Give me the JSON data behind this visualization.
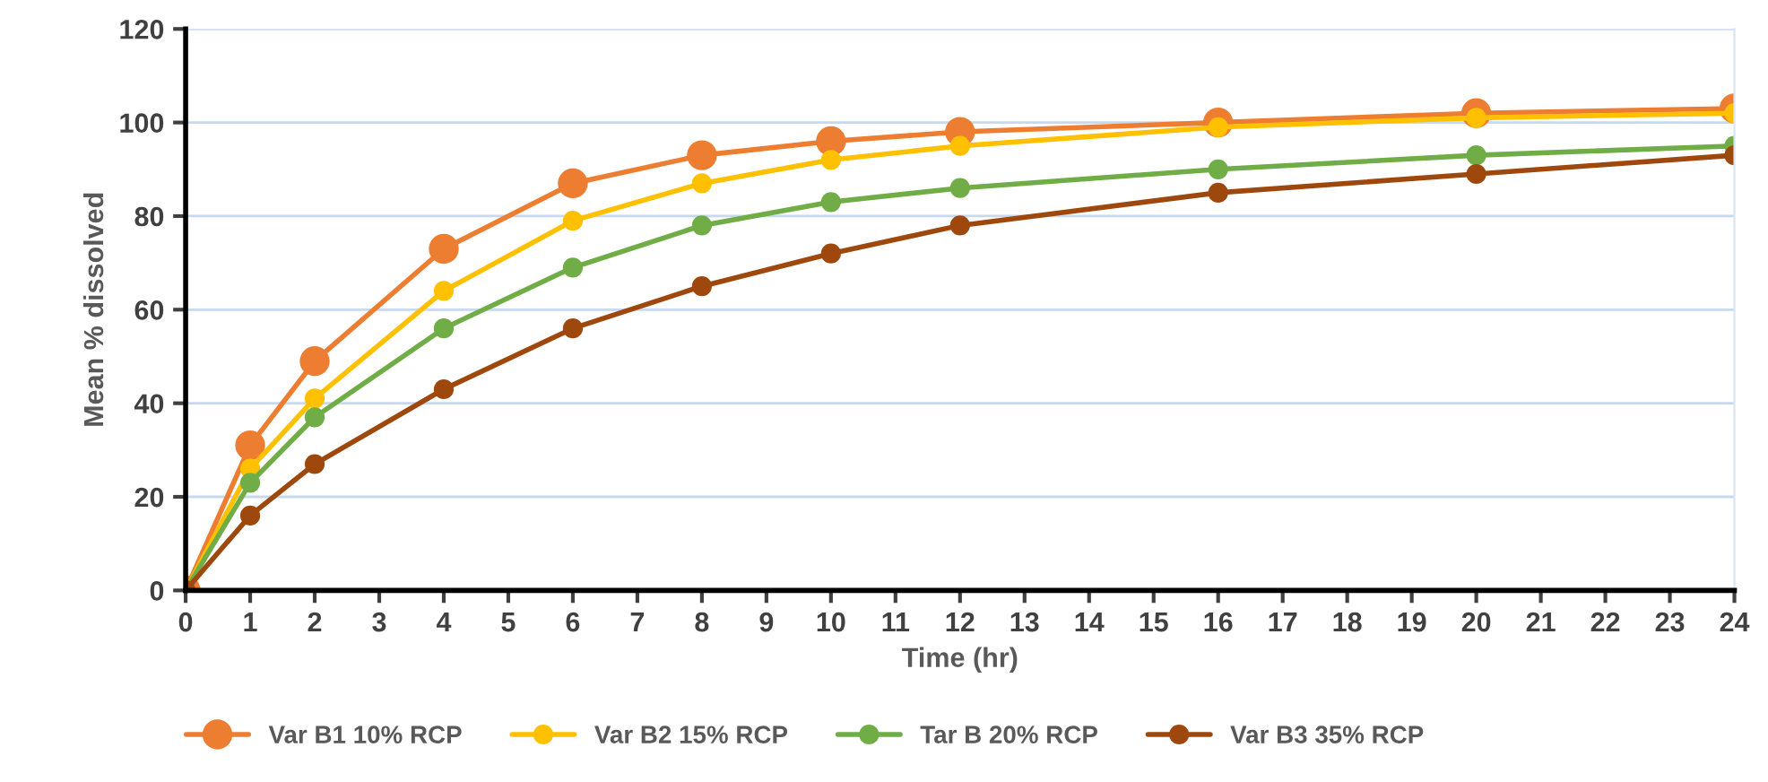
{
  "chart_data": {
    "type": "line",
    "xlabel": "Time (hr)",
    "ylabel": "Mean % dissolved",
    "x": [
      0,
      1,
      2,
      4,
      6,
      8,
      10,
      12,
      16,
      20,
      24
    ],
    "series": [
      {
        "name": "Var B1 10% RCP",
        "color": "#ed7d31",
        "values": [
          0,
          31,
          49,
          73,
          87,
          93,
          96,
          98,
          100,
          102,
          103
        ]
      },
      {
        "name": "Var B2 15% RCP",
        "color": "#ffc000",
        "values": [
          0,
          26,
          41,
          64,
          79,
          87,
          92,
          95,
          99,
          101,
          102
        ]
      },
      {
        "name": "Tar B 20% RCP",
        "color": "#70ad47",
        "values": [
          0,
          23,
          37,
          56,
          69,
          78,
          83,
          86,
          90,
          93,
          95
        ]
      },
      {
        "name": "Var B3 35% RCP",
        "color": "#9e480e",
        "values": [
          0,
          16,
          27,
          43,
          56,
          65,
          72,
          78,
          85,
          89,
          93
        ]
      }
    ],
    "xlim": [
      0,
      24
    ],
    "xticks": [
      0,
      1,
      2,
      3,
      4,
      5,
      6,
      7,
      8,
      9,
      10,
      11,
      12,
      13,
      14,
      15,
      16,
      17,
      18,
      19,
      20,
      21,
      22,
      23,
      24
    ],
    "ylim": [
      0,
      120
    ],
    "yticks": [
      0,
      20,
      40,
      60,
      80,
      100,
      120
    ],
    "grid": "y",
    "legend": "bottom",
    "marker": "circle",
    "line_style": "solid"
  }
}
